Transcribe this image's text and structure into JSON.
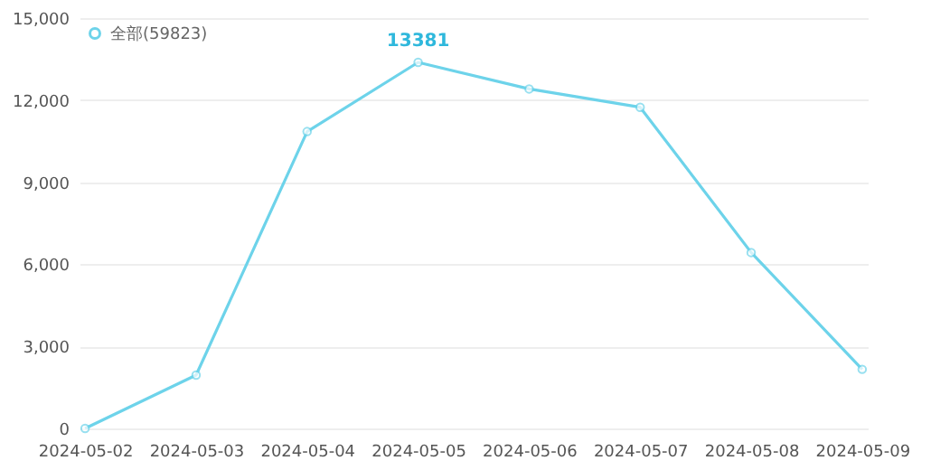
{
  "chart_data": {
    "type": "line",
    "categories": [
      "2024-05-02",
      "2024-05-03",
      "2024-05-04",
      "2024-05-05",
      "2024-05-06",
      "2024-05-07",
      "2024-05-08",
      "2024-05-09"
    ],
    "series": [
      {
        "name": "全部(59823)",
        "color": "#6dd3ea",
        "values": [
          0,
          1950,
          10850,
          13381,
          12410,
          11740,
          6430,
          2160
        ],
        "value_labels": [
          null,
          null,
          null,
          "13381",
          null,
          null,
          null,
          null
        ]
      }
    ],
    "ylim": [
      0,
      15000
    ],
    "yticks": [
      {
        "value": 0,
        "label": "0"
      },
      {
        "value": 3000,
        "label": "3,000"
      },
      {
        "value": 6000,
        "label": "6,000"
      },
      {
        "value": 9000,
        "label": "9,000"
      },
      {
        "value": 12000,
        "label": "12,000"
      },
      {
        "value": 15000,
        "label": "15,000"
      }
    ],
    "grid": "y",
    "legend": "top left",
    "marker": "circle",
    "line_style": "solid"
  }
}
